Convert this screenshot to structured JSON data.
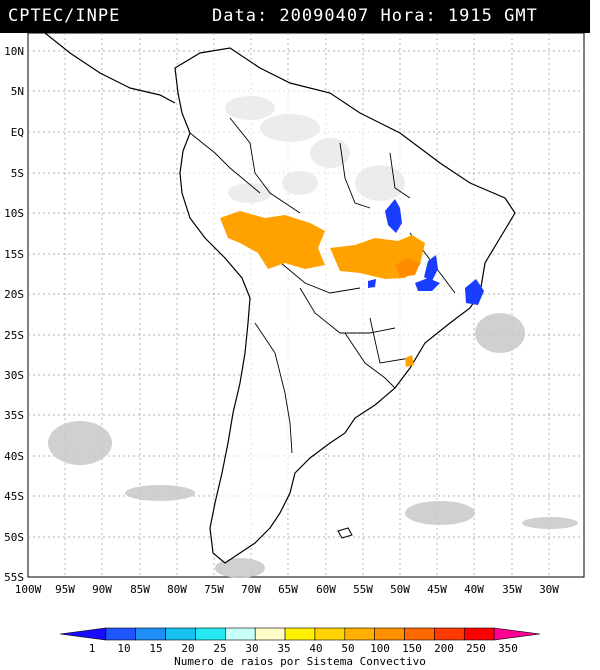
{
  "header": {
    "source": "CPTEC/INPE",
    "datetime": "Data: 20090407 Hora: 1915 GMT"
  },
  "map": {
    "lat_labels": [
      "10N",
      "5N",
      "EQ",
      "5S",
      "10S",
      "15S",
      "20S",
      "25S",
      "30S",
      "35S",
      "40S",
      "45S",
      "50S",
      "55S"
    ],
    "lon_labels": [
      "100W",
      "95W",
      "90W",
      "85W",
      "80W",
      "75W",
      "70W",
      "65W",
      "60W",
      "55W",
      "50W",
      "45W",
      "40W",
      "35W",
      "30W"
    ],
    "region": "South America",
    "colors": {
      "land": "#ffffff",
      "cloud": "#c8c8c8",
      "border": "#000000",
      "grid": "#888888"
    }
  },
  "legend": {
    "ticks": [
      "1",
      "10",
      "15",
      "20",
      "25",
      "30",
      "35",
      "40",
      "50",
      "100",
      "150",
      "200",
      "250",
      "350"
    ],
    "colors": [
      "#1a0cff",
      "#1f55ff",
      "#1f8ff8",
      "#18c2f0",
      "#25e8f0",
      "#c8fff8",
      "#fffcc8",
      "#fff000",
      "#ffd200",
      "#ffb000",
      "#ff9000",
      "#ff6a00",
      "#ff3a00",
      "#ff0000",
      "#ff0090"
    ],
    "caption": "Numero de raios por Sistema Convectivo"
  }
}
